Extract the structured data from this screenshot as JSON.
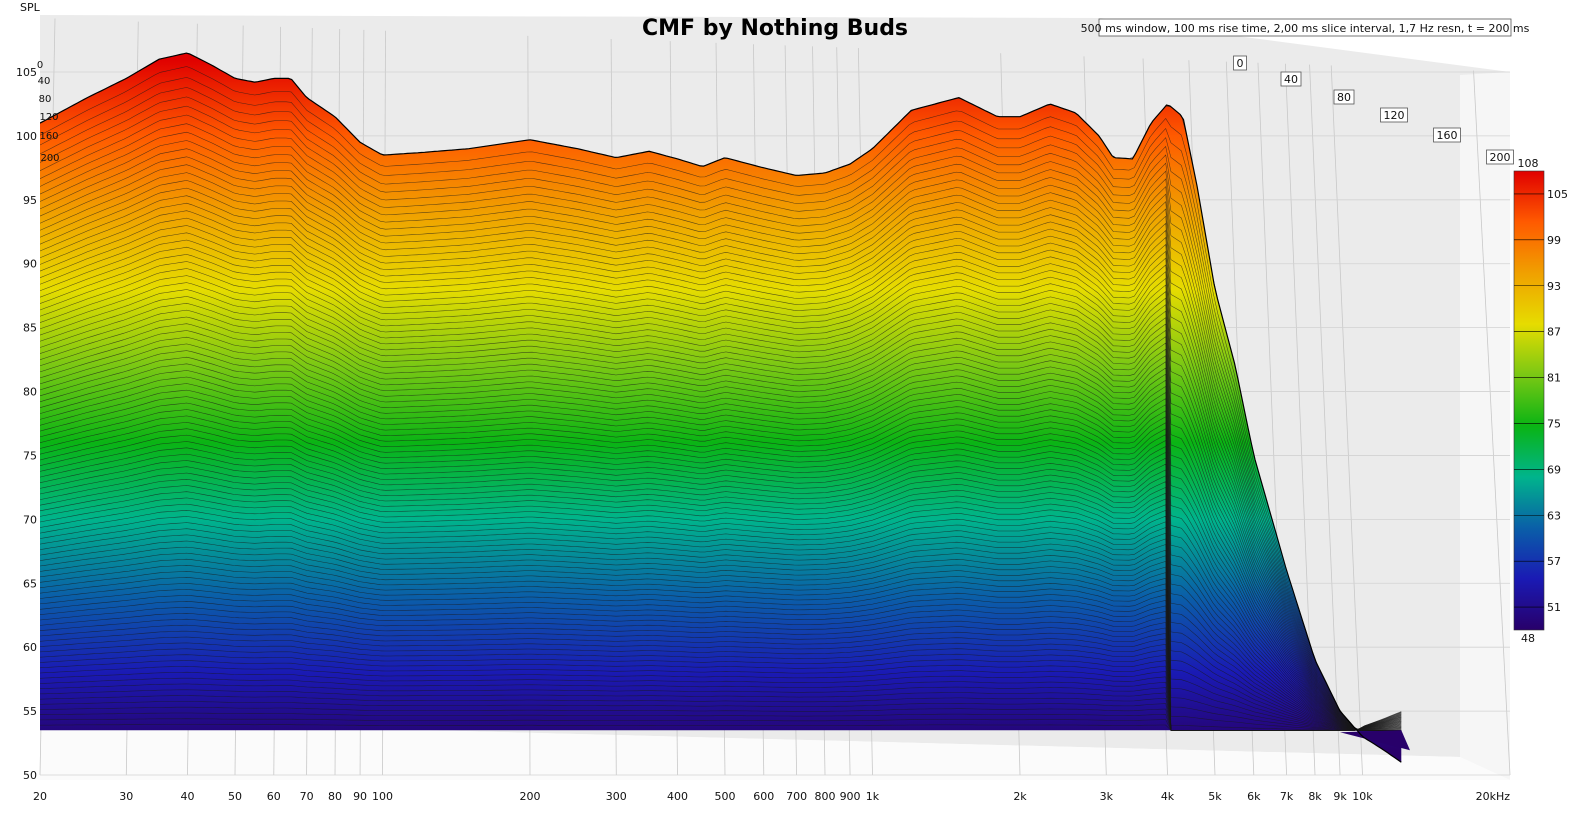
{
  "chart_data": {
    "type": "waterfall",
    "title": "CMF by Nothing Buds",
    "info": "500 ms window, 100 ms rise time, 2,00 ms slice interval, 1,7 Hz resn, t = 200 ms",
    "ylabel": "SPL",
    "xlabel_unit": "kHz",
    "y_ticks": [
      105,
      100,
      95,
      90,
      85,
      80,
      75,
      70,
      65,
      60,
      55,
      50
    ],
    "ylim": [
      50,
      107
    ],
    "x_ticks": [
      "20",
      "30",
      "40",
      "50",
      "60",
      "70",
      "80",
      "90",
      "100",
      "200",
      "300",
      "400",
      "500",
      "600",
      "700",
      "800",
      "900",
      "1k",
      "2k",
      "3k",
      "4k",
      "5k",
      "6k",
      "7k",
      "8k",
      "9k",
      "10k",
      "20kHz"
    ],
    "x_tick_values": [
      20,
      30,
      40,
      50,
      60,
      70,
      80,
      90,
      100,
      200,
      300,
      400,
      500,
      600,
      700,
      800,
      900,
      1000,
      2000,
      3000,
      4000,
      5000,
      6000,
      7000,
      8000,
      9000,
      10000,
      20000
    ],
    "xlim": [
      20,
      20000
    ],
    "time_ticks_ms": [
      "0",
      "40",
      "80",
      "120",
      "160",
      "200"
    ],
    "time_unit": "ms",
    "colorbar": {
      "ticks": [
        "108",
        "105",
        "99",
        "93",
        "87",
        "81",
        "75",
        "69",
        "63",
        "57",
        "51",
        "48"
      ],
      "range": [
        48,
        108
      ]
    },
    "series": [
      {
        "t_ms": 0,
        "freq_hz": [
          20,
          25,
          30,
          35,
          40,
          45,
          50,
          55,
          60,
          65,
          70,
          80,
          90,
          100,
          120,
          150,
          200,
          250,
          300,
          350,
          400,
          450,
          500,
          600,
          700,
          800,
          900,
          1000,
          1200,
          1500,
          1800,
          2000,
          2300,
          2600,
          2900,
          3100,
          3400,
          3700,
          4000,
          4300,
          4600,
          5000,
          5500,
          6000,
          7000,
          8000,
          9000,
          10000,
          11000,
          12000
        ],
        "spl_db": [
          101,
          103,
          104.5,
          106,
          106.5,
          105.5,
          104.5,
          104.2,
          104.5,
          104.5,
          103,
          101.5,
          99.5,
          98.5,
          98.7,
          99,
          99.7,
          99,
          98.3,
          98.8,
          98.2,
          97.6,
          98.3,
          97.5,
          96.9,
          97.1,
          97.8,
          99,
          102,
          103,
          101.5,
          101.5,
          102.5,
          101.8,
          100,
          98.3,
          98.2,
          101,
          102.5,
          101.5,
          96,
          88,
          82,
          75,
          66,
          59,
          55,
          53,
          52,
          51
        ]
      }
    ],
    "colors": [
      "#28006a",
      "#1a1ab4",
      "#0a5fa8",
      "#00b48c",
      "#0ab414",
      "#7ac814",
      "#e6dc00",
      "#f0a000",
      "#ff5a00",
      "#e00000"
    ]
  }
}
